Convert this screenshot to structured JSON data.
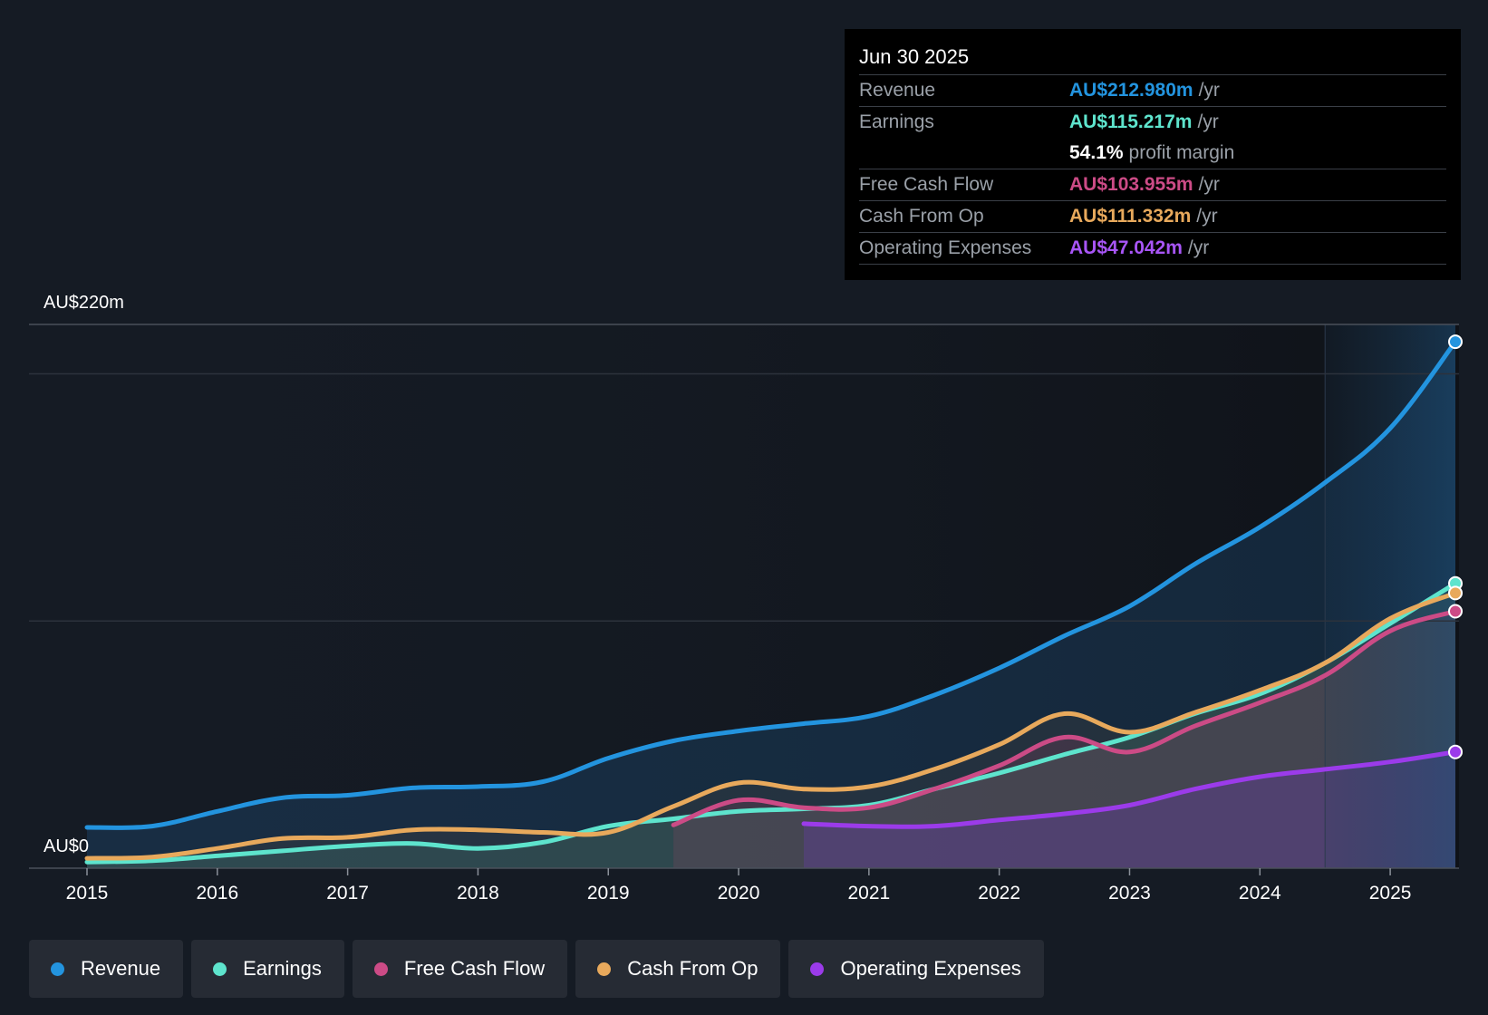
{
  "chart_data": {
    "type": "line",
    "title": "",
    "y_axis": {
      "top_label": "AU$220m",
      "bottom_label": "AU$0",
      "ylim": [
        0,
        220
      ]
    },
    "x_axis": {
      "ticks": [
        "2015",
        "2016",
        "2017",
        "2018",
        "2019",
        "2020",
        "2021",
        "2022",
        "2023",
        "2024",
        "2025"
      ]
    },
    "x_range": [
      2015,
      2025.5
    ],
    "forecast_start": 2024.5,
    "series": [
      {
        "name": "Revenue",
        "color": "#2394df",
        "points": [
          [
            2015,
            16.5
          ],
          [
            2015.5,
            17
          ],
          [
            2016,
            23
          ],
          [
            2016.5,
            28.5
          ],
          [
            2017,
            29.5
          ],
          [
            2017.5,
            32.5
          ],
          [
            2018,
            33
          ],
          [
            2018.5,
            35
          ],
          [
            2019,
            44.5
          ],
          [
            2019.5,
            51.5
          ],
          [
            2020,
            55.5
          ],
          [
            2020.5,
            58.5
          ],
          [
            2021,
            61.5
          ],
          [
            2021.5,
            70
          ],
          [
            2022,
            81
          ],
          [
            2022.5,
            94
          ],
          [
            2023,
            106
          ],
          [
            2023.5,
            123
          ],
          [
            2024,
            138
          ],
          [
            2024.5,
            156
          ],
          [
            2025,
            178
          ],
          [
            2025.5,
            212.98
          ]
        ]
      },
      {
        "name": "Earnings",
        "color": "#5ee4cd",
        "points": [
          [
            2015,
            2.5
          ],
          [
            2015.5,
            3
          ],
          [
            2016,
            5
          ],
          [
            2016.5,
            7
          ],
          [
            2017,
            9
          ],
          [
            2017.5,
            10
          ],
          [
            2018,
            8
          ],
          [
            2018.5,
            10.5
          ],
          [
            2019,
            17
          ],
          [
            2019.5,
            20
          ],
          [
            2020,
            23
          ],
          [
            2020.5,
            24
          ],
          [
            2021,
            25.5
          ],
          [
            2021.5,
            32
          ],
          [
            2022,
            38.5
          ],
          [
            2022.5,
            46
          ],
          [
            2023,
            53
          ],
          [
            2023.5,
            62.5
          ],
          [
            2024,
            70.5
          ],
          [
            2024.5,
            83
          ],
          [
            2025,
            99
          ],
          [
            2025.5,
            115.217
          ]
        ]
      },
      {
        "name": "Free Cash Flow",
        "color": "#cc4b86",
        "points": [
          [
            2019.5,
            17.5
          ],
          [
            2020,
            27.5
          ],
          [
            2020.5,
            24.5
          ],
          [
            2021,
            24.5
          ],
          [
            2021.5,
            32
          ],
          [
            2022,
            41.5
          ],
          [
            2022.5,
            53
          ],
          [
            2023,
            47
          ],
          [
            2023.5,
            57.5
          ],
          [
            2024,
            67
          ],
          [
            2024.5,
            78
          ],
          [
            2025,
            96
          ],
          [
            2025.5,
            103.955
          ]
        ]
      },
      {
        "name": "Cash From Op",
        "color": "#e8a95c",
        "points": [
          [
            2015,
            4
          ],
          [
            2015.5,
            4.5
          ],
          [
            2016,
            8
          ],
          [
            2016.5,
            12
          ],
          [
            2017,
            12.5
          ],
          [
            2017.5,
            15.5
          ],
          [
            2018,
            15.5
          ],
          [
            2018.5,
            14.5
          ],
          [
            2019,
            14.5
          ],
          [
            2019.5,
            25
          ],
          [
            2020,
            34.5
          ],
          [
            2020.5,
            32
          ],
          [
            2021,
            33
          ],
          [
            2021.5,
            40
          ],
          [
            2022,
            50
          ],
          [
            2022.5,
            62.5
          ],
          [
            2023,
            55
          ],
          [
            2023.5,
            63
          ],
          [
            2024,
            72
          ],
          [
            2024.5,
            83
          ],
          [
            2025,
            101
          ],
          [
            2025.5,
            111.332
          ]
        ]
      },
      {
        "name": "Operating Expenses",
        "color": "#9b3bea",
        "points": [
          [
            2020.5,
            18
          ],
          [
            2021,
            17
          ],
          [
            2021.5,
            17
          ],
          [
            2022,
            19.5
          ],
          [
            2022.5,
            22
          ],
          [
            2023,
            25.5
          ],
          [
            2023.5,
            32
          ],
          [
            2024,
            37
          ],
          [
            2024.5,
            40
          ],
          [
            2025,
            43
          ],
          [
            2025.5,
            47.042
          ]
        ]
      }
    ]
  },
  "tooltip": {
    "date": "Jun 30 2025",
    "revenue_label": "Revenue",
    "revenue_value": "AU$212.980m",
    "earnings_label": "Earnings",
    "earnings_value": "AU$115.217m",
    "margin_value": "54.1%",
    "margin_label": "profit margin",
    "fcf_label": "Free Cash Flow",
    "fcf_value": "AU$103.955m",
    "cfo_label": "Cash From Op",
    "cfo_value": "AU$111.332m",
    "opex_label": "Operating Expenses",
    "opex_value": "AU$47.042m",
    "unit": "/yr"
  },
  "legend": [
    {
      "label": "Revenue",
      "color": "#2394df"
    },
    {
      "label": "Earnings",
      "color": "#5ee4cd"
    },
    {
      "label": "Free Cash Flow",
      "color": "#cc4b86"
    },
    {
      "label": "Cash From Op",
      "color": "#e8a95c"
    },
    {
      "label": "Operating Expenses",
      "color": "#9b3bea"
    }
  ]
}
